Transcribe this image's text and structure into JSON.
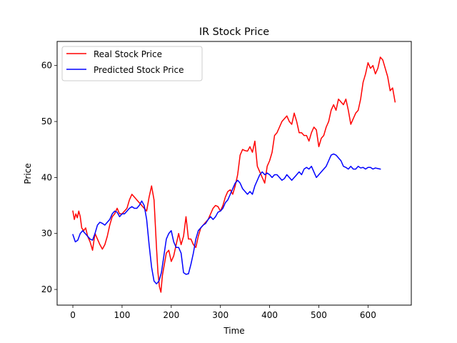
{
  "chart_data": {
    "type": "line",
    "title": "IR Stock Price",
    "xlabel": "Time",
    "ylabel": "Price",
    "xlim": [
      -32,
      688
    ],
    "ylim": [
      17.2,
      64.3
    ],
    "xticks": [
      0,
      100,
      200,
      300,
      400,
      500,
      600
    ],
    "yticks": [
      20,
      30,
      40,
      50,
      60
    ],
    "grid": false,
    "legend": "top-left",
    "series": [
      {
        "name": "Real Stock Price",
        "color": "#ff0000",
        "x": [
          0,
          3,
          6,
          9,
          12,
          15,
          18,
          22,
          26,
          30,
          35,
          40,
          45,
          50,
          55,
          60,
          65,
          70,
          75,
          80,
          85,
          90,
          95,
          100,
          105,
          110,
          115,
          120,
          125,
          130,
          135,
          140,
          145,
          150,
          155,
          160,
          165,
          170,
          173,
          176,
          179,
          182,
          186,
          190,
          195,
          200,
          205,
          210,
          215,
          220,
          225,
          230,
          235,
          240,
          245,
          250,
          255,
          260,
          265,
          270,
          275,
          280,
          285,
          290,
          295,
          300,
          305,
          310,
          315,
          320,
          325,
          330,
          335,
          340,
          345,
          350,
          355,
          360,
          365,
          370,
          375,
          380,
          385,
          390,
          395,
          400,
          405,
          410,
          415,
          420,
          425,
          430,
          435,
          440,
          445,
          450,
          455,
          460,
          465,
          470,
          475,
          480,
          485,
          490,
          495,
          500,
          505,
          510,
          515,
          520,
          525,
          530,
          535,
          540,
          545,
          550,
          555,
          560,
          565,
          570,
          575,
          580,
          585,
          590,
          595,
          600,
          605,
          610,
          615,
          620,
          625,
          630,
          635,
          640,
          645,
          650,
          655
        ],
        "values": [
          34.0,
          32.5,
          33.5,
          32.8,
          34.0,
          33.0,
          31.0,
          30.5,
          31.0,
          29.5,
          28.5,
          27.0,
          30.0,
          29.0,
          28.0,
          27.2,
          28.0,
          29.5,
          31.5,
          33.0,
          33.5,
          34.5,
          33.5,
          33.5,
          34.0,
          34.5,
          36.0,
          37.0,
          36.5,
          36.0,
          35.5,
          35.0,
          34.5,
          34.0,
          36.5,
          38.5,
          36.0,
          27.5,
          23.0,
          20.5,
          19.5,
          22.5,
          24.5,
          26.5,
          27.0,
          25.0,
          26.0,
          28.0,
          30.0,
          28.0,
          29.5,
          33.0,
          29.0,
          29.0,
          28.0,
          27.5,
          29.5,
          31.0,
          31.5,
          32.0,
          32.5,
          33.5,
          34.5,
          35.0,
          34.8,
          34.0,
          35.0,
          36.5,
          37.5,
          37.8,
          37.0,
          38.5,
          40.5,
          44.0,
          45.0,
          44.8,
          44.7,
          45.5,
          44.5,
          46.5,
          42.0,
          41.0,
          40.0,
          39.0,
          42.0,
          43.0,
          44.5,
          47.5,
          48.0,
          49.0,
          50.0,
          50.5,
          51.0,
          50.0,
          49.5,
          51.5,
          50.0,
          48.0,
          48.0,
          47.5,
          47.5,
          46.5,
          48.0,
          49.0,
          48.5,
          45.5,
          47.0,
          47.5,
          49.0,
          50.0,
          52.0,
          53.0,
          52.0,
          54.0,
          53.5,
          53.0,
          54.0,
          52.0,
          49.5,
          50.5,
          51.5,
          52.0,
          54.0,
          57.0,
          58.5,
          60.5,
          59.5,
          60.0,
          58.5,
          59.5,
          61.5,
          61.0,
          59.5,
          58.0,
          55.5,
          56.0,
          53.5
        ]
      },
      {
        "name": "Predicted Stock Price",
        "color": "#0000ff",
        "x": [
          0,
          5,
          10,
          15,
          20,
          25,
          30,
          35,
          40,
          45,
          50,
          55,
          60,
          65,
          70,
          75,
          80,
          85,
          90,
          95,
          100,
          105,
          110,
          115,
          120,
          125,
          130,
          135,
          140,
          145,
          150,
          155,
          160,
          165,
          170,
          175,
          180,
          185,
          190,
          195,
          200,
          205,
          210,
          215,
          220,
          225,
          230,
          235,
          240,
          245,
          250,
          255,
          260,
          265,
          270,
          275,
          280,
          285,
          290,
          295,
          300,
          305,
          310,
          315,
          320,
          325,
          330,
          335,
          340,
          345,
          350,
          355,
          360,
          365,
          370,
          375,
          380,
          385,
          390,
          395,
          400,
          405,
          410,
          415,
          420,
          425,
          430,
          435,
          440,
          445,
          450,
          455,
          460,
          465,
          470,
          475,
          480,
          485,
          490,
          495,
          500,
          505,
          510,
          515,
          520,
          525,
          530,
          535,
          540,
          545,
          550,
          555,
          560,
          565,
          570,
          575,
          580,
          585,
          590,
          595,
          600,
          605,
          610,
          615,
          620,
          625
        ],
        "values": [
          29.8,
          28.5,
          28.8,
          30.0,
          30.5,
          30.0,
          29.5,
          29.0,
          28.8,
          30.0,
          31.5,
          32.0,
          31.8,
          31.5,
          32.0,
          32.5,
          33.5,
          34.0,
          33.8,
          33.0,
          33.5,
          33.5,
          34.0,
          34.5,
          34.8,
          34.5,
          34.5,
          35.0,
          35.8,
          35.0,
          32.5,
          28.0,
          24.0,
          21.5,
          21.0,
          21.5,
          23.0,
          26.0,
          29.0,
          30.0,
          30.5,
          28.5,
          27.5,
          27.5,
          26.5,
          23.0,
          22.7,
          22.8,
          24.5,
          26.5,
          29.0,
          30.5,
          31.0,
          31.5,
          31.8,
          32.5,
          33.0,
          32.5,
          33.0,
          33.8,
          34.0,
          34.5,
          35.5,
          36.0,
          37.0,
          38.0,
          39.0,
          39.5,
          39.0,
          38.0,
          37.5,
          37.0,
          37.5,
          37.0,
          38.5,
          39.5,
          40.5,
          41.0,
          40.5,
          40.8,
          40.5,
          40.0,
          40.5,
          40.5,
          40.0,
          39.5,
          39.8,
          40.5,
          40.0,
          39.5,
          40.0,
          40.5,
          41.0,
          40.5,
          41.5,
          41.8,
          41.5,
          42.0,
          41.0,
          40.0,
          40.5,
          41.0,
          41.5,
          42.0,
          43.0,
          44.0,
          44.2,
          44.0,
          43.5,
          43.0,
          42.0,
          41.8,
          41.5,
          42.0,
          41.5,
          41.5,
          42.0,
          41.7,
          41.8,
          41.5,
          41.8,
          41.8,
          41.5,
          41.7,
          41.6,
          41.5
        ]
      }
    ]
  }
}
